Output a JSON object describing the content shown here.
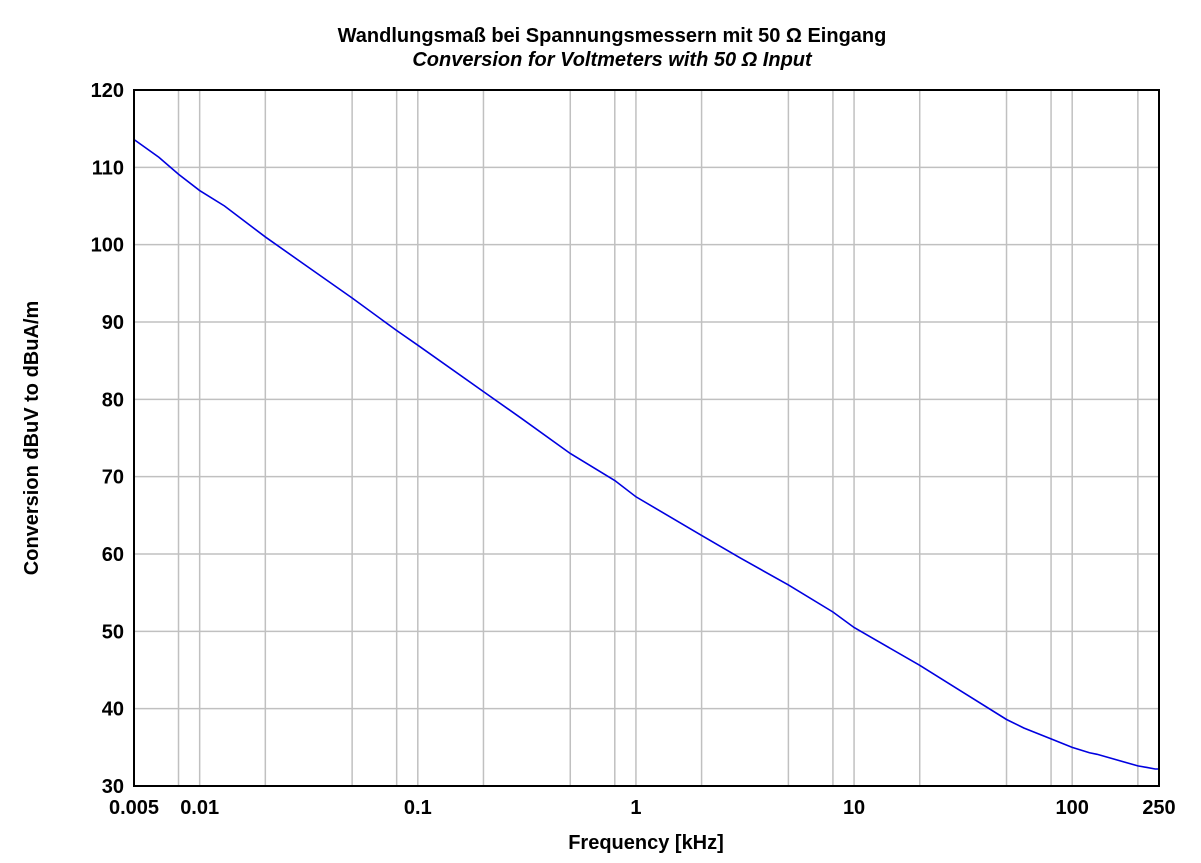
{
  "chart_data": {
    "type": "line",
    "title": "Wandlungsmaß bei Spannungsmessern mit 50 Ω Eingang",
    "subtitle": "Conversion for Voltmeters with 50 Ω Input",
    "xlabel": "Frequency [kHz]",
    "ylabel": "Conversion dBuV to dBuA/m",
    "xscale": "log",
    "xlim": [
      0.005,
      250
    ],
    "ylim": [
      30,
      120
    ],
    "grid": true,
    "x_ticks": [
      {
        "value": 0.005,
        "label": "0.005"
      },
      {
        "value": 0.01,
        "label": "0.01"
      },
      {
        "value": 0.1,
        "label": "0.1"
      },
      {
        "value": 1,
        "label": "1"
      },
      {
        "value": 10,
        "label": "10"
      },
      {
        "value": 100,
        "label": "100"
      },
      {
        "value": 250,
        "label": "250"
      }
    ],
    "x_minor_grid": [
      0.008,
      0.02,
      0.05,
      0.08,
      0.2,
      0.5,
      0.8,
      2,
      5,
      8,
      20,
      50,
      80,
      200
    ],
    "y_ticks": [
      {
        "value": 30,
        "label": "30"
      },
      {
        "value": 40,
        "label": "40"
      },
      {
        "value": 50,
        "label": "50"
      },
      {
        "value": 60,
        "label": "60"
      },
      {
        "value": 70,
        "label": "70"
      },
      {
        "value": 80,
        "label": "80"
      },
      {
        "value": 90,
        "label": "90"
      },
      {
        "value": 100,
        "label": "100"
      },
      {
        "value": 110,
        "label": "110"
      },
      {
        "value": 120,
        "label": "120"
      }
    ],
    "series": [
      {
        "color": "#0000e0",
        "x": [
          0.005,
          0.0065,
          0.008,
          0.01,
          0.013,
          0.02,
          0.03,
          0.05,
          0.08,
          0.1,
          0.2,
          0.3,
          0.5,
          0.8,
          1,
          2,
          3,
          5,
          8,
          10,
          20,
          30,
          50,
          60,
          80,
          100,
          120,
          130,
          150,
          200,
          220,
          240,
          250
        ],
        "y": [
          113.6,
          111.3,
          109.1,
          107.0,
          105.0,
          101.0,
          97.5,
          93.1,
          88.9,
          87.0,
          81.0,
          77.5,
          73.0,
          69.5,
          67.4,
          62.4,
          59.5,
          56.0,
          52.5,
          50.5,
          45.6,
          42.5,
          38.6,
          37.5,
          36.1,
          35.0,
          34.3,
          34.1,
          33.6,
          32.6,
          32.4,
          32.2,
          32.2
        ]
      }
    ]
  }
}
